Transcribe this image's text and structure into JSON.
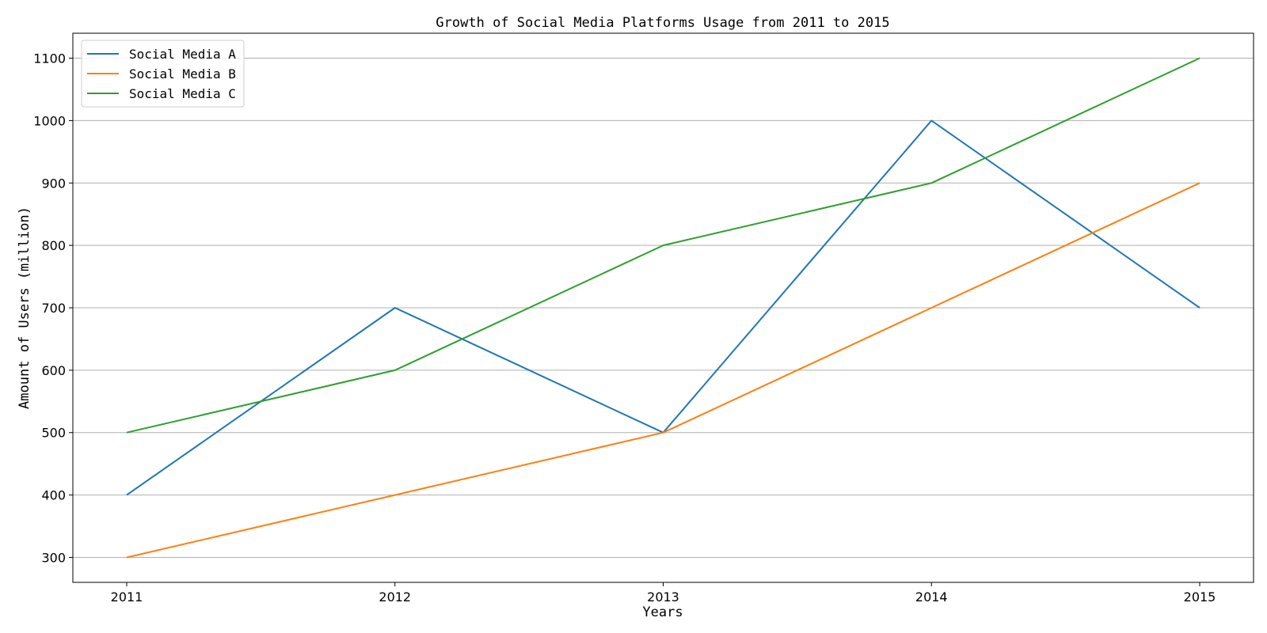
{
  "chart_data": {
    "type": "line",
    "title": "Growth of Social Media Platforms Usage from 2011 to 2015",
    "xlabel": "Years",
    "ylabel": "Amount of Users (million)",
    "x": [
      "2011",
      "2012",
      "2013",
      "2014",
      "2015"
    ],
    "yticks": [
      "300",
      "400",
      "500",
      "600",
      "700",
      "800",
      "900",
      "1000",
      "1100"
    ],
    "ylim": [
      260,
      1140
    ],
    "grid": "horizontal",
    "legend_position": "top-left",
    "series": [
      {
        "name": "Social Media A",
        "color": "#1f77b4",
        "values": [
          400,
          700,
          500,
          1000,
          700
        ]
      },
      {
        "name": "Social Media B",
        "color": "#ff7f0e",
        "values": [
          300,
          400,
          500,
          700,
          900
        ]
      },
      {
        "name": "Social Media C",
        "color": "#2ca02c",
        "values": [
          500,
          600,
          800,
          900,
          1100
        ]
      }
    ]
  }
}
